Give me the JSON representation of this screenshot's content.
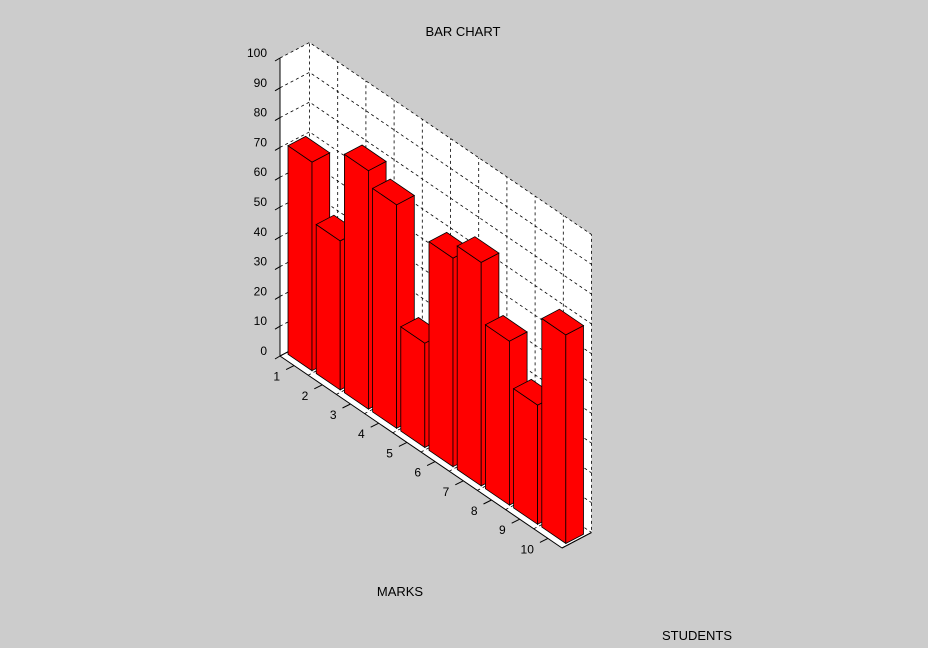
{
  "chart_data": {
    "type": "bar",
    "style": "3d",
    "title": "BAR CHART",
    "xlabel": "MARKS",
    "ylabel": "STUDENTS",
    "categories": [
      "1",
      "2",
      "3",
      "4",
      "5",
      "6",
      "7",
      "8",
      "9",
      "10"
    ],
    "values": [
      70,
      50,
      80,
      75,
      35,
      70,
      75,
      55,
      40,
      70
    ],
    "zlim": [
      0,
      100
    ],
    "zticks": [
      "0",
      "10",
      "20",
      "30",
      "40",
      "50",
      "60",
      "70",
      "80",
      "90",
      "100"
    ],
    "grid": true,
    "bar_color": "#ff0000",
    "background_color": "#cccccc",
    "pane_color": "#ffffff"
  }
}
